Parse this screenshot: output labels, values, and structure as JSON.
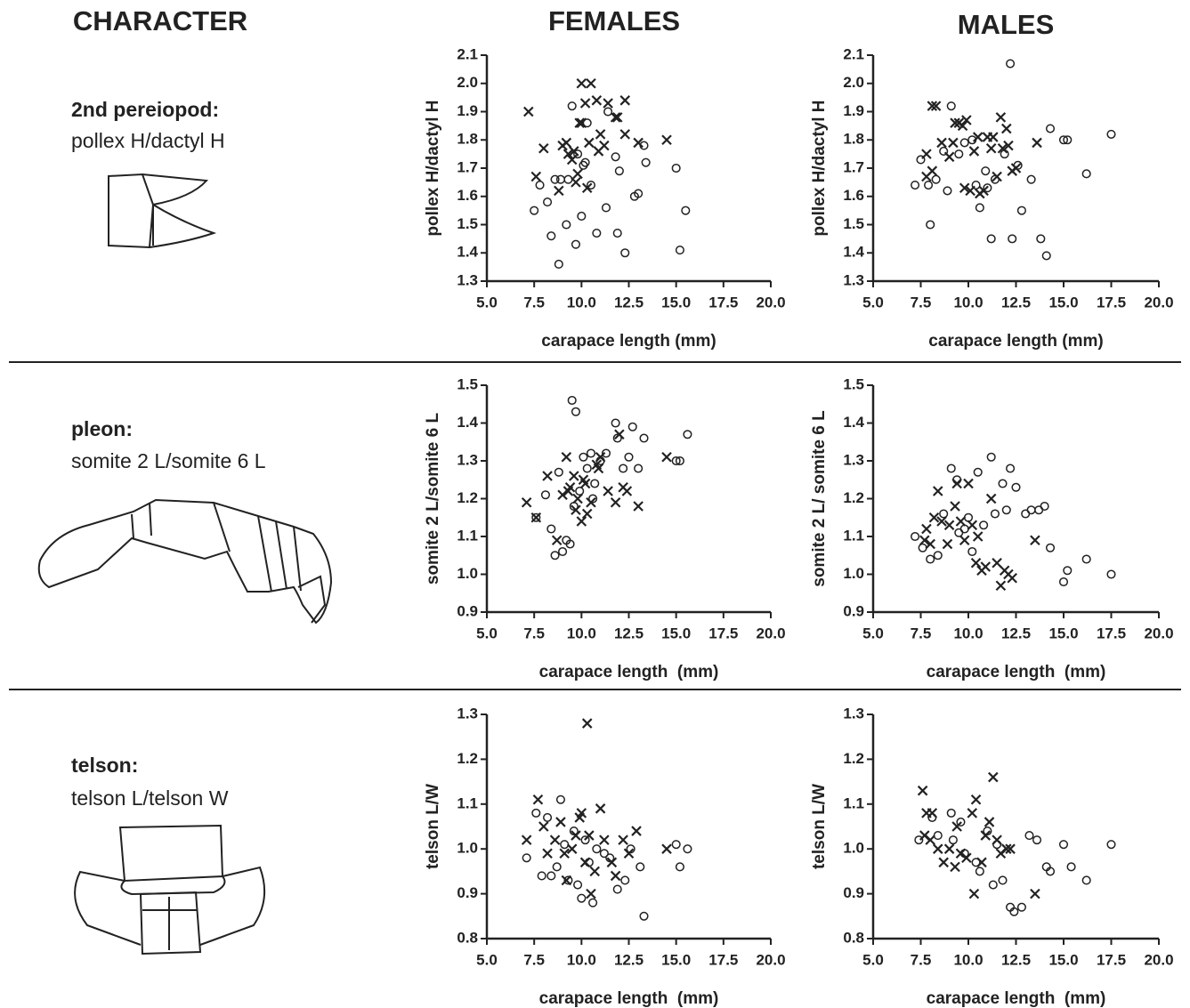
{
  "headers": [
    "CHARACTER",
    "FEMALES",
    "MALES"
  ],
  "characters": [
    {
      "name": "2nd pereiopod:",
      "description": "pollex H/dactyl H"
    },
    {
      "name": "pleon:",
      "description": "somite 2 L/somite 6 L"
    },
    {
      "name": "telson:",
      "description": "telson L/telson W"
    }
  ],
  "chart_data": [
    {
      "type": "scatter",
      "xlabel": "carapace length (mm)",
      "ylabel": "pollex H/dactyl H",
      "xlim": [
        5,
        20
      ],
      "ylim": [
        1.3,
        2.1
      ],
      "xticks": [
        {
          "value": 5,
          "label": "5.0"
        },
        7.5,
        {
          "value": 10,
          "label": "10.0"
        },
        12.5,
        {
          "value": 15,
          "label": "15.0"
        },
        17.5,
        {
          "value": 20,
          "label": "20.0"
        }
      ],
      "yticks": [
        1.3,
        1.4,
        1.5,
        1.6,
        1.7,
        1.8,
        1.9,
        {
          "value": 2,
          "label": "2.0"
        },
        2.1
      ],
      "series": [
        {
          "marker": "x",
          "color": "#222",
          "x": [
            7.2,
            8.0,
            7.6,
            8.8,
            9.0,
            9.2,
            9.3,
            9.5,
            9.6,
            9.8,
            10.0,
            9.9,
            10.0,
            10.5,
            10.2,
            10.8,
            10.4,
            10.3,
            11.0,
            11.2,
            11.4,
            11.8,
            11.9,
            12.3,
            12.3,
            13.0,
            14.5,
            10.9,
            9.7
          ],
          "values": [
            1.9,
            1.77,
            1.67,
            1.62,
            1.78,
            1.79,
            1.75,
            1.73,
            1.76,
            1.68,
            1.86,
            1.86,
            2.0,
            2.0,
            1.93,
            1.94,
            1.79,
            1.63,
            1.82,
            1.78,
            1.93,
            1.88,
            1.88,
            1.94,
            1.82,
            1.79,
            1.8,
            1.76,
            1.65
          ]
        },
        {
          "marker": "circle",
          "color": "#222",
          "x": [
            7.5,
            7.8,
            8.2,
            8.4,
            8.6,
            8.9,
            8.8,
            9.2,
            9.3,
            9.5,
            9.7,
            9.8,
            10.0,
            10.2,
            10.1,
            10.3,
            10.5,
            10.8,
            11.3,
            11.4,
            11.8,
            11.9,
            12.0,
            12.3,
            12.8,
            13.0,
            13.3,
            13.4,
            15.0,
            15.2,
            15.5
          ],
          "values": [
            1.55,
            1.64,
            1.58,
            1.46,
            1.66,
            1.66,
            1.36,
            1.5,
            1.66,
            1.92,
            1.43,
            1.75,
            1.53,
            1.72,
            1.71,
            1.86,
            1.64,
            1.47,
            1.56,
            1.9,
            1.74,
            1.47,
            1.69,
            1.4,
            1.6,
            1.61,
            1.78,
            1.72,
            1.7,
            1.41,
            1.55
          ]
        }
      ]
    },
    {
      "type": "scatter",
      "xlabel": "carapace length (mm)",
      "ylabel": "pollex H/dactyl H",
      "xlim": [
        5,
        20
      ],
      "ylim": [
        1.3,
        2.1
      ],
      "xticks": [
        {
          "value": 5,
          "label": "5.0"
        },
        7.5,
        {
          "value": 10,
          "label": "10.0"
        },
        12.5,
        {
          "value": 15,
          "label": "15.0"
        },
        17.5,
        {
          "value": 20,
          "label": "20.0"
        }
      ],
      "yticks": [
        1.3,
        1.4,
        1.5,
        1.6,
        1.7,
        1.8,
        1.9,
        {
          "value": 2,
          "label": "2.0"
        },
        2.1
      ],
      "series": [
        {
          "marker": "x",
          "color": "#222",
          "x": [
            7.8,
            7.8,
            8.1,
            8.1,
            8.3,
            8.6,
            9.0,
            9.2,
            9.3,
            9.5,
            9.7,
            9.9,
            9.8,
            10.1,
            10.3,
            10.5,
            10.8,
            11.0,
            11.2,
            11.3,
            11.5,
            11.7,
            11.8,
            12.0,
            12.1,
            12.3,
            12.5,
            13.6,
            10.6
          ],
          "values": [
            1.75,
            1.67,
            1.69,
            1.92,
            1.92,
            1.79,
            1.74,
            1.79,
            1.86,
            1.86,
            1.85,
            1.87,
            1.63,
            1.62,
            1.76,
            1.81,
            1.62,
            1.81,
            1.77,
            1.81,
            1.67,
            1.88,
            1.77,
            1.84,
            1.78,
            1.69,
            1.7,
            1.79,
            1.61
          ]
        },
        {
          "marker": "circle",
          "color": "#222",
          "x": [
            7.2,
            7.5,
            7.9,
            8.0,
            8.3,
            8.7,
            8.9,
            9.1,
            9.5,
            9.8,
            10.2,
            10.4,
            10.6,
            10.9,
            11.0,
            11.2,
            11.4,
            11.9,
            12.2,
            12.3,
            12.6,
            12.8,
            13.3,
            13.8,
            14.1,
            14.3,
            15.0,
            15.2,
            16.2,
            17.5
          ],
          "values": [
            1.64,
            1.73,
            1.64,
            1.5,
            1.66,
            1.76,
            1.62,
            1.92,
            1.75,
            1.79,
            1.8,
            1.64,
            1.56,
            1.69,
            1.63,
            1.45,
            1.66,
            1.75,
            2.07,
            1.45,
            1.71,
            1.55,
            1.66,
            1.45,
            1.39,
            1.84,
            1.8,
            1.8,
            1.68,
            1.82
          ]
        }
      ]
    },
    {
      "type": "scatter",
      "xlabel": "carapace length  (mm)",
      "ylabel": "somite 2 L/somite 6 L",
      "xlim": [
        5,
        20
      ],
      "ylim": [
        0.9,
        1.5
      ],
      "xticks": [
        {
          "value": 5,
          "label": "5.0"
        },
        7.5,
        {
          "value": 10,
          "label": "10.0"
        },
        12.5,
        {
          "value": 15,
          "label": "15.0"
        },
        17.5,
        {
          "value": 20,
          "label": "20.0"
        }
      ],
      "yticks": [
        0.9,
        {
          "value": 1,
          "label": "1.0"
        },
        1.1,
        1.2,
        1.3,
        1.4,
        1.5
      ],
      "series": [
        {
          "marker": "x",
          "color": "#222",
          "x": [
            7.1,
            7.6,
            8.2,
            8.7,
            9.0,
            9.2,
            9.4,
            9.6,
            9.7,
            9.8,
            10.0,
            10.1,
            10.3,
            10.5,
            10.8,
            10.9,
            11.0,
            11.4,
            11.8,
            12.0,
            12.2,
            12.4,
            13.0,
            14.5,
            10.2,
            9.3
          ],
          "values": [
            1.19,
            1.15,
            1.26,
            1.09,
            1.21,
            1.31,
            1.23,
            1.26,
            1.17,
            1.2,
            1.14,
            1.25,
            1.16,
            1.19,
            1.29,
            1.28,
            1.31,
            1.22,
            1.19,
            1.37,
            1.23,
            1.22,
            1.18,
            1.31,
            1.24,
            1.22
          ]
        },
        {
          "marker": "circle",
          "color": "#222",
          "x": [
            7.6,
            8.1,
            8.4,
            8.6,
            8.8,
            9.0,
            9.2,
            9.4,
            9.5,
            9.7,
            9.9,
            10.1,
            10.3,
            10.5,
            10.7,
            11.0,
            11.3,
            11.8,
            11.9,
            12.2,
            12.5,
            12.7,
            13.0,
            13.3,
            15.0,
            15.2,
            15.6,
            10.6,
            9.6
          ],
          "values": [
            1.15,
            1.21,
            1.12,
            1.05,
            1.27,
            1.06,
            1.09,
            1.08,
            1.46,
            1.43,
            1.22,
            1.31,
            1.28,
            1.32,
            1.24,
            1.3,
            1.32,
            1.4,
            1.36,
            1.28,
            1.31,
            1.39,
            1.28,
            1.36,
            1.3,
            1.3,
            1.37,
            1.2,
            1.18
          ]
        }
      ]
    },
    {
      "type": "scatter",
      "xlabel": "carapace length  (mm)",
      "ylabel": "somite 2 L/ somite 6 L",
      "xlim": [
        5,
        20
      ],
      "ylim": [
        0.9,
        1.5
      ],
      "xticks": [
        {
          "value": 5,
          "label": "5.0"
        },
        7.5,
        {
          "value": 10,
          "label": "10.0"
        },
        12.5,
        {
          "value": 15,
          "label": "15.0"
        },
        17.5,
        {
          "value": 20,
          "label": "20.0"
        }
      ],
      "yticks": [
        0.9,
        {
          "value": 1,
          "label": "1.0"
        },
        1.1,
        1.2,
        1.3,
        1.4,
        1.5
      ],
      "series": [
        {
          "marker": "x",
          "color": "#222",
          "x": [
            7.7,
            7.8,
            8.0,
            8.2,
            8.4,
            8.6,
            8.9,
            9.0,
            9.3,
            9.4,
            9.6,
            9.8,
            10.0,
            10.2,
            10.4,
            10.5,
            10.7,
            10.9,
            11.2,
            11.5,
            11.7,
            11.9,
            12.1,
            12.3,
            13.5
          ],
          "values": [
            1.09,
            1.12,
            1.08,
            1.15,
            1.22,
            1.14,
            1.08,
            1.13,
            1.18,
            1.24,
            1.14,
            1.09,
            1.24,
            1.13,
            1.03,
            1.1,
            1.01,
            1.02,
            1.2,
            1.03,
            0.97,
            1.01,
            1.0,
            0.99,
            1.09
          ]
        },
        {
          "marker": "circle",
          "color": "#222",
          "x": [
            7.2,
            7.6,
            8.0,
            8.4,
            8.7,
            9.1,
            9.4,
            9.5,
            9.8,
            10.0,
            10.2,
            10.5,
            10.8,
            11.2,
            11.4,
            11.8,
            12.0,
            12.2,
            12.5,
            13.0,
            13.3,
            13.7,
            14.0,
            14.3,
            15.0,
            15.2,
            16.2,
            17.5
          ],
          "values": [
            1.1,
            1.07,
            1.04,
            1.05,
            1.16,
            1.28,
            1.25,
            1.11,
            1.12,
            1.15,
            1.06,
            1.27,
            1.13,
            1.31,
            1.16,
            1.24,
            1.17,
            1.28,
            1.23,
            1.16,
            1.17,
            1.17,
            1.18,
            1.07,
            0.98,
            1.01,
            1.04,
            1.0
          ]
        }
      ]
    },
    {
      "type": "scatter",
      "xlabel": "carapace length  (mm)",
      "ylabel": "telson L/W",
      "xlim": [
        5,
        20
      ],
      "ylim": [
        0.8,
        1.3
      ],
      "xticks": [
        {
          "value": 5,
          "label": "5.0"
        },
        7.5,
        {
          "value": 10,
          "label": "10.0"
        },
        12.5,
        {
          "value": 15,
          "label": "15.0"
        },
        17.5,
        {
          "value": 20,
          "label": "20.0"
        }
      ],
      "yticks": [
        0.8,
        0.9,
        {
          "value": 1,
          "label": "1.0"
        },
        1.1,
        1.2,
        1.3
      ],
      "series": [
        {
          "marker": "x",
          "color": "#222",
          "x": [
            7.1,
            7.7,
            8.0,
            8.2,
            8.6,
            8.9,
            9.1,
            9.2,
            9.5,
            9.7,
            9.9,
            10.0,
            10.2,
            10.4,
            10.5,
            10.7,
            11.0,
            11.2,
            11.6,
            11.8,
            12.2,
            12.5,
            12.9,
            14.5,
            10.3
          ],
          "values": [
            1.02,
            1.11,
            1.05,
            0.99,
            1.02,
            1.06,
            0.99,
            0.93,
            1.0,
            1.03,
            1.07,
            1.08,
            0.97,
            1.03,
            0.9,
            0.95,
            1.09,
            1.02,
            0.97,
            0.94,
            1.02,
            0.99,
            1.04,
            1.0,
            1.28
          ]
        },
        {
          "marker": "circle",
          "color": "#222",
          "x": [
            7.1,
            7.6,
            7.9,
            8.2,
            8.4,
            8.7,
            8.9,
            9.1,
            9.3,
            9.6,
            9.8,
            10.0,
            10.2,
            10.4,
            10.6,
            10.8,
            11.2,
            11.5,
            11.9,
            12.3,
            12.6,
            13.1,
            13.3,
            15.0,
            15.2,
            15.6
          ],
          "values": [
            0.98,
            1.08,
            0.94,
            1.07,
            0.94,
            0.96,
            1.11,
            1.01,
            0.93,
            1.04,
            0.92,
            0.89,
            1.02,
            0.97,
            0.88,
            1.0,
            0.99,
            0.98,
            0.91,
            0.93,
            1.0,
            0.96,
            0.85,
            1.01,
            0.96,
            1.0
          ]
        }
      ]
    },
    {
      "type": "scatter",
      "xlabel": "carapace length  (mm)",
      "ylabel": "telson L/W",
      "xlim": [
        5,
        20
      ],
      "ylim": [
        0.8,
        1.3
      ],
      "xticks": [
        {
          "value": 5,
          "label": "5.0"
        },
        7.5,
        {
          "value": 10,
          "label": "10.0"
        },
        12.5,
        {
          "value": 15,
          "label": "15.0"
        },
        17.5,
        {
          "value": 20,
          "label": "20.0"
        }
      ],
      "yticks": [
        0.8,
        0.9,
        {
          "value": 1,
          "label": "1.0"
        },
        1.1,
        1.2,
        1.3
      ],
      "series": [
        {
          "marker": "x",
          "color": "#222",
          "x": [
            7.6,
            7.7,
            7.8,
            8.0,
            8.1,
            8.4,
            8.7,
            9.0,
            9.3,
            9.4,
            9.6,
            9.9,
            10.2,
            10.3,
            10.4,
            10.7,
            10.9,
            11.1,
            11.3,
            11.5,
            11.7,
            12.0,
            12.2,
            13.5
          ],
          "values": [
            1.13,
            1.03,
            1.08,
            1.02,
            1.08,
            1.0,
            0.97,
            1.0,
            0.96,
            1.05,
            0.99,
            0.98,
            1.08,
            0.9,
            1.11,
            0.97,
            1.03,
            1.06,
            1.16,
            1.02,
            0.99,
            1.0,
            1.0,
            0.9
          ]
        },
        {
          "marker": "circle",
          "color": "#222",
          "x": [
            7.4,
            8.1,
            8.4,
            9.1,
            9.2,
            9.6,
            9.8,
            10.4,
            10.6,
            11.0,
            11.3,
            11.5,
            11.8,
            12.2,
            12.4,
            12.8,
            13.2,
            13.6,
            14.1,
            14.3,
            15.0,
            15.4,
            16.2,
            17.5
          ],
          "values": [
            1.02,
            1.07,
            1.03,
            1.08,
            1.02,
            1.06,
            0.99,
            0.97,
            0.95,
            1.04,
            0.92,
            1.01,
            0.93,
            0.87,
            0.86,
            0.87,
            1.03,
            1.02,
            0.96,
            0.95,
            1.01,
            0.96,
            0.93,
            1.01
          ]
        }
      ]
    }
  ]
}
